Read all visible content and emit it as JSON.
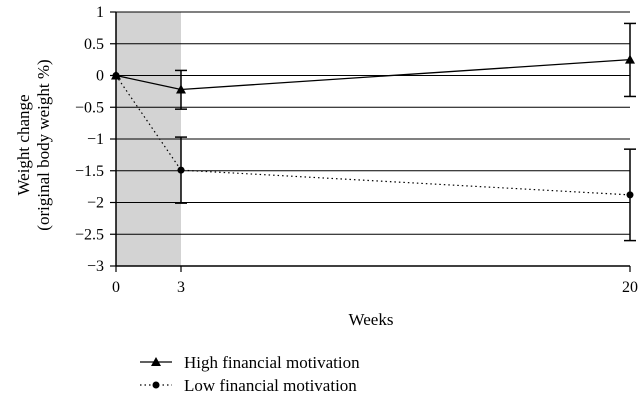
{
  "chart_data": {
    "type": "line",
    "xlabel": "Weeks",
    "ylabel_line1": "Weight change",
    "ylabel_line2": "(original body weight %)",
    "x": [
      0,
      3,
      20
    ],
    "x_ticks": [
      0,
      3,
      20
    ],
    "xlim": [
      0,
      20
    ],
    "ylim": [
      -3,
      1
    ],
    "y_ticks": [
      1,
      0.5,
      0,
      -0.5,
      -1,
      -1.5,
      -2,
      -2.5,
      -3
    ],
    "y_tick_labels": [
      "1",
      "0.5",
      "0",
      "−0.5",
      "−1",
      "−1.5",
      "−2",
      "−2.5",
      "−3"
    ],
    "grid": true,
    "shaded_region": {
      "from": 0,
      "to": 3,
      "color": "#d3d3d3"
    },
    "legend_position": "bottom-left",
    "series": [
      {
        "name": "High financial motivation",
        "marker": "triangle",
        "line_style": "solid",
        "color": "#000000",
        "values": [
          0,
          -0.22,
          0.25
        ],
        "error_bars": [
          null,
          [
            -0.53,
            0.08
          ],
          [
            -0.33,
            0.82
          ]
        ]
      },
      {
        "name": "Low financial motivation",
        "marker": "circle",
        "line_style": "dotted",
        "color": "#000000",
        "values": [
          0,
          -1.49,
          -1.88
        ],
        "error_bars": [
          null,
          [
            -2.01,
            -0.97
          ],
          [
            -2.6,
            -1.16
          ]
        ]
      }
    ]
  }
}
